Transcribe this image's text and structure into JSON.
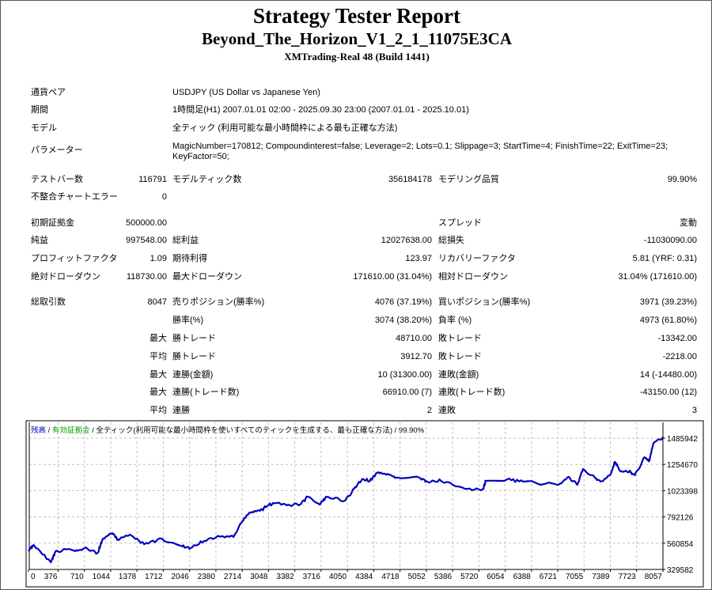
{
  "header": {
    "title": "Strategy Tester Report",
    "subtitle": "Beyond_The_Horizon_V1_2_1_11075E3CA",
    "build": "XMTrading-Real 48 (Build 1441)"
  },
  "info": [
    {
      "label": "通貨ペア",
      "value": "USDJPY (US Dollar vs Japanese Yen)"
    },
    {
      "label": "期間",
      "value": "1時間足(H1) 2007.01.01 02:00 - 2025.09.30 23:00 (2007.01.01 - 2025.10.01)"
    },
    {
      "label": "モデル",
      "value": "全ティック (利用可能な最小時間枠による最も正確な方法)"
    },
    {
      "label": "パラメーター",
      "value": "MagicNumber=170812; Compoundinterest=false; Leverage=2; Lots=0.1; Slippage=3; StartTime=4; FinishTime=22; ExitTime=23; KeyFactor=50;"
    }
  ],
  "stats": [
    {
      "l1": "テストバー数",
      "v1": "116791",
      "l2": "モデルティック数",
      "v2": "356184178",
      "l3": "モデリング品質",
      "v3": "99.90%"
    },
    {
      "l1": "不整合チャートエラー",
      "v1": "0",
      "l2": "",
      "v2": "",
      "l3": "",
      "v3": ""
    },
    {
      "l1": "初期証拠金",
      "v1": "500000.00",
      "l2": "",
      "v2": "",
      "l3": "スプレッド",
      "v3": "変動"
    },
    {
      "l1": "純益",
      "v1": "997548.00",
      "l2": "総利益",
      "v2": "12027638.00",
      "l3": "総損失",
      "v3": "-11030090.00"
    },
    {
      "l1": "プロフィットファクタ",
      "v1": "1.09",
      "l2": "期待利得",
      "v2": "123.97",
      "l3": "リカバリーファクタ",
      "v3": "5.81 (YRF: 0.31)"
    },
    {
      "l1": "絶対ドローダウン",
      "v1": "118730.00",
      "l2": "最大ドローダウン",
      "v2": "171610.00 (31.04%)",
      "l3": "相対ドローダウン",
      "v3": "31.04% (171610.00)"
    },
    {
      "l1": "総取引数",
      "v1": "8047",
      "l2": "売りポジション(勝率%)",
      "v2": "4076 (37.19%)",
      "l3": "買いポジション(勝率%)",
      "v3": "3971 (39.23%)"
    },
    {
      "l1": "",
      "v1": "",
      "l2": "勝率(%)",
      "v2": "3074 (38.20%)",
      "l3": "負率 (%)",
      "v3": "4973 (61.80%)"
    },
    {
      "l1": "",
      "v1": "最大",
      "l2": "勝トレード",
      "v2": "48710.00",
      "l3": "敗トレード",
      "v3": "-13342.00"
    },
    {
      "l1": "",
      "v1": "平均",
      "l2": "勝トレード",
      "v2": "3912.70",
      "l3": "敗トレード",
      "v3": "-2218.00"
    },
    {
      "l1": "",
      "v1": "最大",
      "l2": "連勝(金額)",
      "v2": "10 (31300.00)",
      "l3": "連敗(金額)",
      "v3": "14 (-14480.00)"
    },
    {
      "l1": "",
      "v1": "最大",
      "l2": "連勝(トレード数)",
      "v2": "66910.00 (7)",
      "l3": "連敗(トレード数)",
      "v3": "-43150.00 (12)"
    },
    {
      "l1": "",
      "v1": "平均",
      "l2": "連勝",
      "v2": "2",
      "l3": "連敗",
      "v3": "3"
    }
  ],
  "chart_data": {
    "type": "line",
    "legend": {
      "balance": "残高",
      "sep1": " / ",
      "equity": "有効証拠金",
      "rest": " / 全ティック(利用可能な最小時間枠を使いすべてのティックを生成する、最も正確な方法) / 99.90%"
    },
    "colors": {
      "balance": "#0000c0",
      "equity": "#00a000",
      "grid": "#c0c0c0"
    },
    "xlim": [
      0,
      8057
    ],
    "ylim": [
      329582,
      1485942
    ],
    "x_ticks": [
      "0",
      "376",
      "710",
      "1044",
      "1378",
      "1712",
      "2046",
      "2380",
      "2714",
      "3048",
      "3382",
      "3716",
      "4050",
      "4384",
      "4718",
      "5052",
      "5386",
      "5720",
      "6054",
      "6388",
      "6721",
      "7055",
      "7389",
      "7723",
      "8057"
    ],
    "y_ticks": [
      "1485942",
      "1254670",
      "1023398",
      "792126",
      "560854",
      "329582"
    ],
    "series": [
      {
        "name": "残高",
        "x": [
          0,
          68,
          284,
          334,
          456,
          577,
          709,
          881,
          932,
          1064,
          1145,
          1287,
          1469,
          1692,
          1955,
          2057,
          2229,
          2462,
          2604,
          2715,
          2806,
          2938,
          3040,
          3141,
          3323,
          3445,
          3546,
          3698,
          3779,
          4022,
          4134,
          4235,
          4336,
          4427,
          4559,
          4691,
          4965,
          5066,
          5238,
          5542,
          5775,
          5806,
          6079,
          6282,
          6717,
          6859,
          6970,
          7041,
          7193,
          7264,
          7396,
          7447,
          7518,
          7629,
          7700,
          7822,
          7883,
          7933,
          8057
        ],
        "y": [
          500000,
          545000,
          392000,
          476000,
          510000,
          497000,
          517000,
          476000,
          580000,
          650000,
          587000,
          636000,
          552000,
          601000,
          532000,
          518000,
          580000,
          622000,
          615000,
          755000,
          831000,
          845000,
          894000,
          915000,
          894000,
          901000,
          970000,
          901000,
          970000,
          936000,
          1040000,
          1124000,
          1110000,
          1180000,
          1172000,
          1138000,
          1138000,
          1103000,
          1110000,
          1040000,
          1040000,
          1110000,
          1124000,
          1103000,
          1075000,
          1145000,
          1075000,
          1214000,
          1138000,
          1103000,
          1172000,
          1277000,
          1193000,
          1193000,
          1159000,
          1319000,
          1284000,
          1437000,
          1497548
        ]
      }
    ]
  }
}
